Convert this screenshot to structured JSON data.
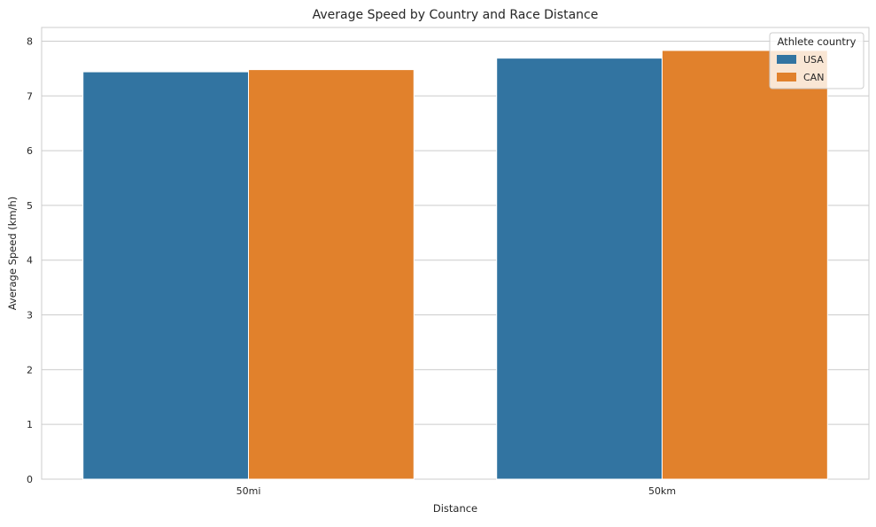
{
  "chart_data": {
    "type": "bar",
    "title": "Average Speed by Country and Race Distance",
    "xlabel": "Distance",
    "ylabel": "Average Speed (km/h)",
    "categories": [
      "50mi",
      "50km"
    ],
    "series": [
      {
        "name": "USA",
        "values": [
          7.44,
          7.69
        ],
        "color": "#3274a1"
      },
      {
        "name": "CAN",
        "values": [
          7.48,
          7.83
        ],
        "color": "#e1812c"
      }
    ],
    "ylim": [
      0,
      8.25
    ],
    "yticks": [
      "0",
      "1",
      "2",
      "3",
      "4",
      "5",
      "6",
      "7",
      "8"
    ],
    "grid": true,
    "legend": {
      "title": "Athlete country",
      "placement": "top-right"
    }
  }
}
